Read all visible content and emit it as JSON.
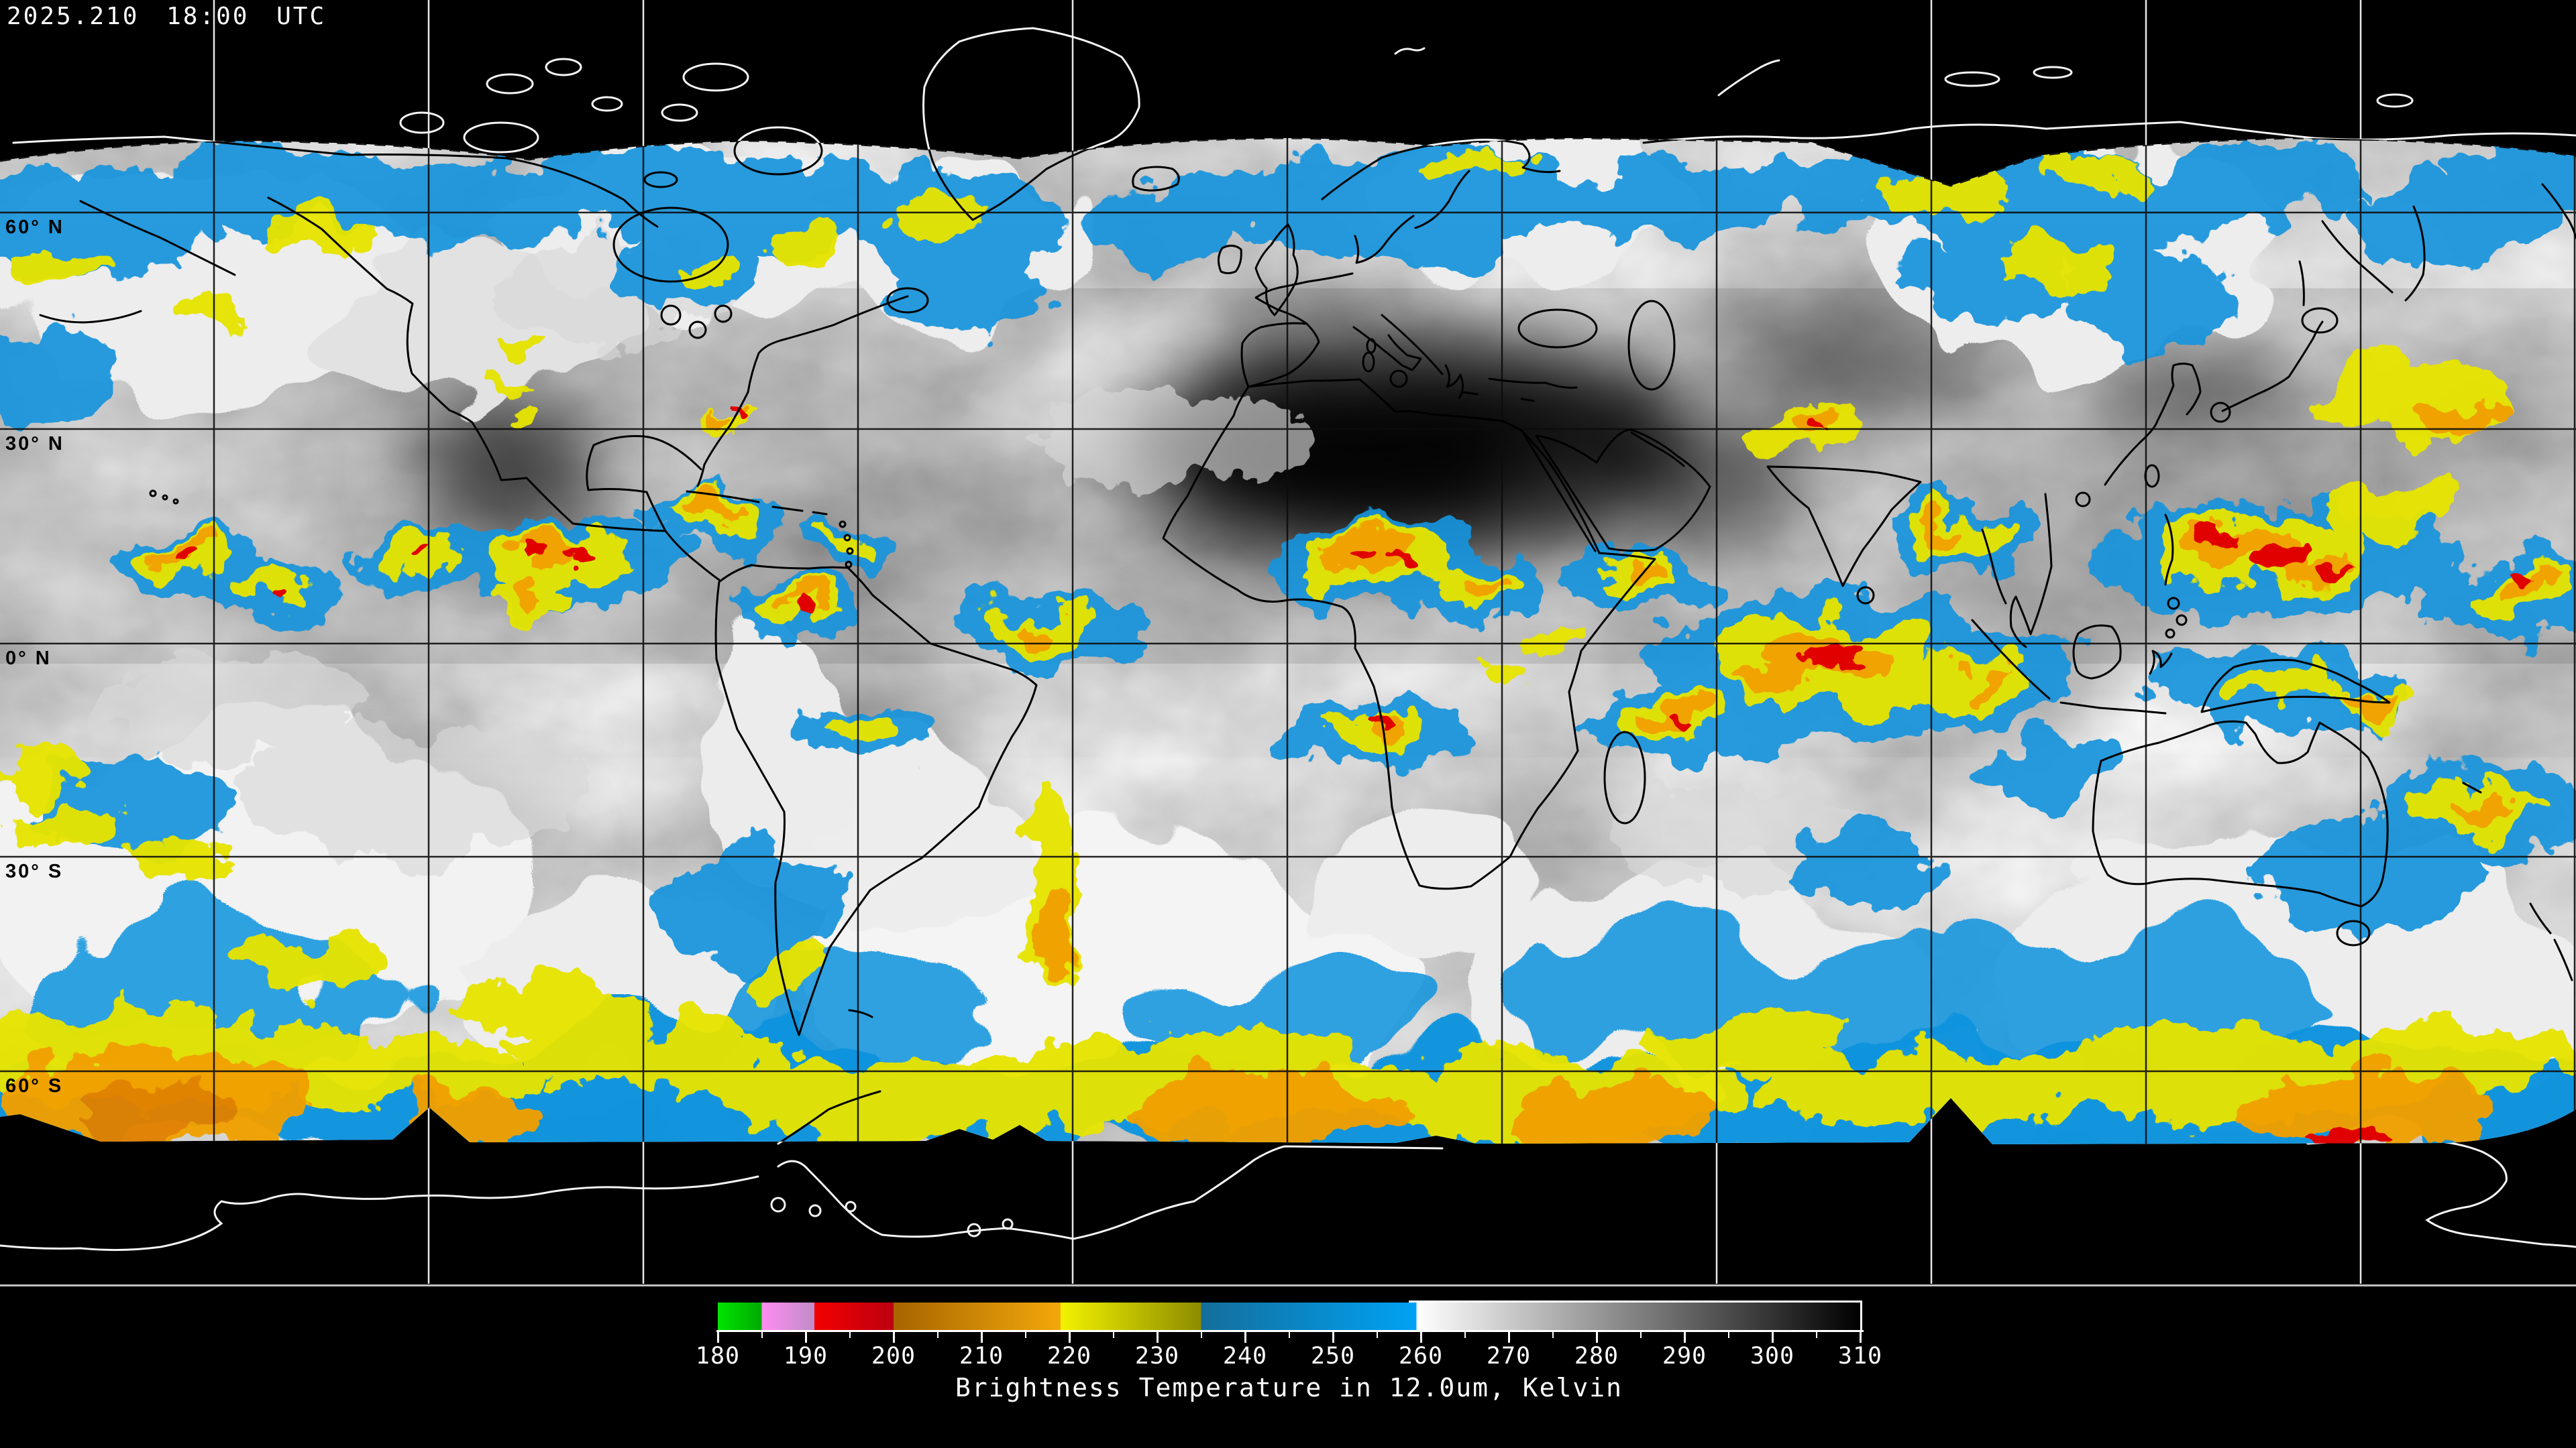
{
  "header": {
    "timestamp": "2025.210 18:00 UTC"
  },
  "map": {
    "latitude_labels": [
      {
        "label": "60° N"
      },
      {
        "label": "30° N"
      },
      {
        "label": "0° N"
      },
      {
        "label": "30° S"
      },
      {
        "label": "60° S"
      }
    ],
    "palette": {
      "cold_cloud_blue": "#1494dc",
      "cold_cloud_yellow": "#e6e400",
      "cold_cloud_orange": "#f0a000",
      "cold_cloud_red": "#e10000",
      "coastline_on_data": "#000000",
      "coastline_on_void": "#ffffff",
      "background": "#000000"
    }
  },
  "colorbar": {
    "caption": "Brightness Temperature in 12.0um, Kelvin",
    "min_k": 180,
    "max_k": 310,
    "major_tick_step": 10,
    "minor_tick_step": 5,
    "tick_labels": [
      "180",
      "190",
      "200",
      "210",
      "220",
      "230",
      "240",
      "250",
      "260",
      "270",
      "280",
      "290",
      "300",
      "310"
    ],
    "segments": [
      {
        "from": 180,
        "to": 185,
        "start_color": "#00e400",
        "end_color": "#00aa00"
      },
      {
        "from": 185,
        "to": 191,
        "start_color": "#ff8cf2",
        "end_color": "#bf8cc8"
      },
      {
        "from": 191,
        "to": 200,
        "start_color": "#f20000",
        "end_color": "#bd0010"
      },
      {
        "from": 200,
        "to": 219,
        "start_color": "#a76400",
        "end_color": "#f2a80a"
      },
      {
        "from": 219,
        "to": 235,
        "start_color": "#f2f200",
        "end_color": "#8c8c00"
      },
      {
        "from": 235,
        "to": 259.5,
        "start_color": "#146e9b",
        "end_color": "#00a2f5"
      },
      {
        "from": 259.5,
        "to": 310,
        "start_color": "#ffffff",
        "end_color": "#000000"
      }
    ]
  }
}
